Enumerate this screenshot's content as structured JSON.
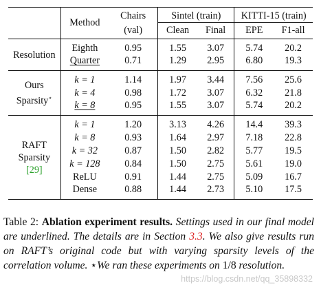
{
  "table": {
    "headers": {
      "method": "Method",
      "chairs_line1": "Chairs",
      "chairs_line2": "(val)",
      "sintel": "Sintel (train)",
      "kitti": "KITTI-15 (train)",
      "clean": "Clean",
      "final": "Final",
      "epe": "EPE",
      "f1all": "F1-all"
    },
    "groups": [
      {
        "label_line1": "Resolution",
        "label_line2": "",
        "label_cite": "",
        "rows": [
          {
            "method": "Eighth",
            "chairs": "0.95",
            "clean": "1.55",
            "final": "3.07",
            "epe": "5.74",
            "f1all": "20.2",
            "underlined": false
          },
          {
            "method": "Quarter",
            "chairs": "0.71",
            "clean": "1.29",
            "final": "2.95",
            "epe": "6.80",
            "f1all": "19.3",
            "underlined": true
          }
        ]
      },
      {
        "label_line1": "Ours",
        "label_line2": "Sparsity",
        "label_star": "⋆",
        "label_cite": "",
        "rows": [
          {
            "method": "k = 1",
            "chairs": "1.14",
            "clean": "1.97",
            "final": "3.44",
            "epe": "7.56",
            "f1all": "25.6",
            "underlined": false
          },
          {
            "method": "k = 4",
            "chairs": "0.98",
            "clean": "1.72",
            "final": "3.07",
            "epe": "6.32",
            "f1all": "21.8",
            "underlined": false
          },
          {
            "method": "k = 8",
            "chairs": "0.95",
            "clean": "1.55",
            "final": "3.07",
            "epe": "5.74",
            "f1all": "20.2",
            "underlined": true
          }
        ]
      },
      {
        "label_line1": "RAFT",
        "label_line2": "Sparsity",
        "label_cite": "[29]",
        "rows": [
          {
            "method": "k = 1",
            "chairs": "1.20",
            "clean": "3.13",
            "final": "4.26",
            "epe": "14.4",
            "f1all": "39.3",
            "underlined": false
          },
          {
            "method": "k = 8",
            "chairs": "0.93",
            "clean": "1.64",
            "final": "2.97",
            "epe": "7.18",
            "f1all": "22.8",
            "underlined": false
          },
          {
            "method": "k = 32",
            "chairs": "0.87",
            "clean": "1.50",
            "final": "2.82",
            "epe": "5.77",
            "f1all": "19.5",
            "underlined": false
          },
          {
            "method": "k = 128",
            "chairs": "0.84",
            "clean": "1.50",
            "final": "2.75",
            "epe": "5.61",
            "f1all": "19.0",
            "underlined": false
          },
          {
            "method": "ReLU",
            "chairs": "0.91",
            "clean": "1.44",
            "final": "2.75",
            "epe": "5.09",
            "f1all": "16.7",
            "underlined": false
          },
          {
            "method": "Dense",
            "chairs": "0.88",
            "clean": "1.44",
            "final": "2.73",
            "epe": "5.10",
            "f1all": "17.5",
            "underlined": false
          }
        ]
      }
    ]
  },
  "caption": {
    "prefix": "Table 2: ",
    "bold": "Ablation experiment results.",
    "italic_a": " Settings used in our final model are underlined. The details are in Section ",
    "section_ref": "3.3",
    "italic_b": ". We also give results run on RAFT’s original code but with varying sparsity levels of the correlation volume. ",
    "star": "⋆",
    "italic_c": "We ran these experiments on ",
    "fraction": "1/8",
    "italic_d": " resolution."
  },
  "watermark": "https://blog.csdn.net/qq_35898332"
}
